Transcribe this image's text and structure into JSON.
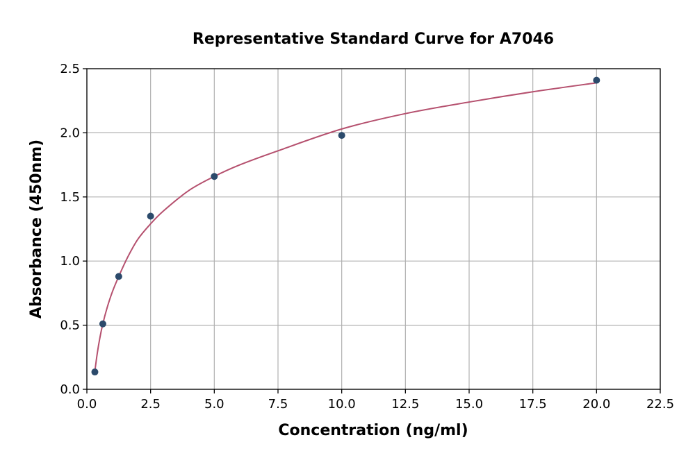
{
  "chart_data": {
    "type": "scatter",
    "title": "Representative Standard Curve for A7046",
    "xlabel": "Concentration (ng/ml)",
    "ylabel": "Absorbance (450nm)",
    "xlim": [
      0,
      22.5
    ],
    "ylim": [
      0,
      2.5
    ],
    "xticks": [
      0,
      2.5,
      5,
      7.5,
      10,
      12.5,
      15,
      17.5,
      20,
      22.5
    ],
    "xtick_labels": [
      "0.0",
      "2.5",
      "5.0",
      "7.5",
      "10.0",
      "12.5",
      "15.0",
      "17.5",
      "20.0",
      "22.5"
    ],
    "yticks": [
      0,
      0.5,
      1,
      1.5,
      2,
      2.5
    ],
    "ytick_labels": [
      "0.0",
      "0.5",
      "1.0",
      "1.5",
      "2.0",
      "2.5"
    ],
    "grid": true,
    "series": [
      {
        "kind": "points",
        "color": "#2b4a6b",
        "x": [
          0.313,
          0.625,
          1.25,
          2.5,
          5,
          10,
          20
        ],
        "y": [
          0.135,
          0.51,
          0.88,
          1.35,
          1.66,
          1.98,
          2.41
        ]
      },
      {
        "kind": "fitted-curve",
        "color": "#b5506e",
        "x": [
          0.313,
          0.4,
          0.5,
          0.625,
          0.8,
          1.0,
          1.25,
          1.6,
          2.0,
          2.5,
          3.0,
          4.0,
          5.0,
          6.0,
          7.5,
          10.0,
          12.5,
          15.0,
          17.5,
          20.0
        ],
        "y": [
          0.14,
          0.27,
          0.39,
          0.51,
          0.64,
          0.76,
          0.88,
          1.03,
          1.17,
          1.29,
          1.39,
          1.55,
          1.66,
          1.75,
          1.86,
          2.03,
          2.15,
          2.24,
          2.32,
          2.39
        ]
      }
    ]
  }
}
